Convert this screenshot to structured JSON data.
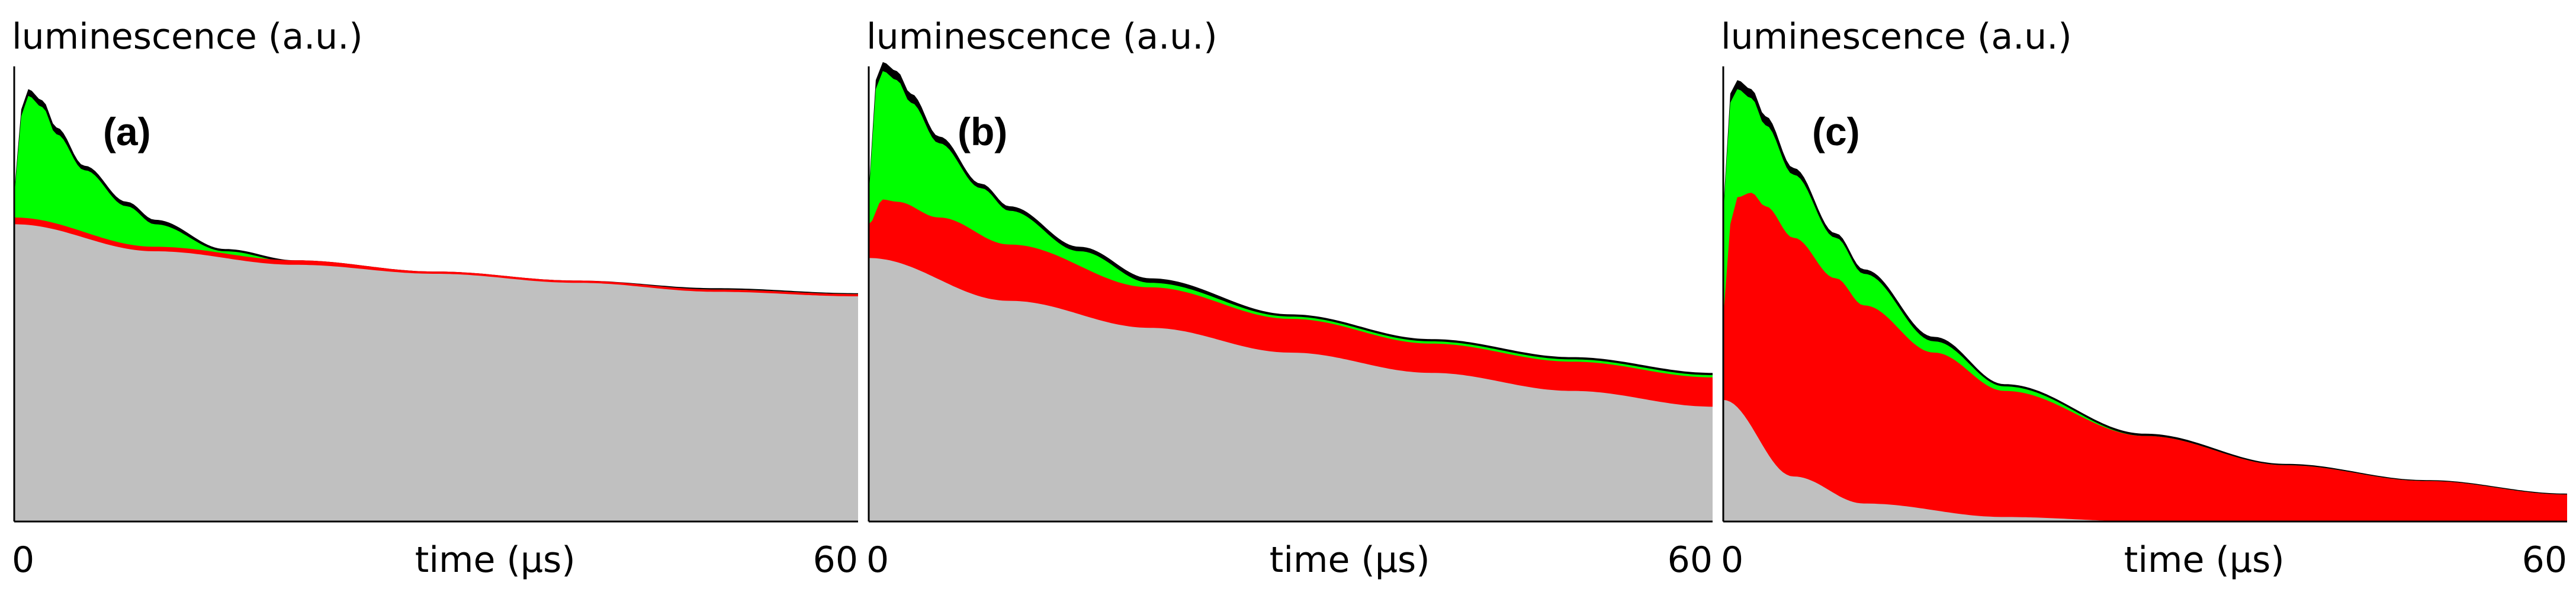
{
  "chart_data": [
    {
      "type": "area",
      "panel_label": "(a)",
      "ylabel": "luminescence (a.u.)",
      "xlabel": "time (µs)",
      "x_ticks": [
        "0",
        "60"
      ],
      "xlim": [
        0,
        60
      ],
      "ylim": [
        0,
        1
      ],
      "colors": {
        "gray": "#c0c0c0",
        "red": "#ff0000",
        "green": "#00ff00",
        "black": "#000000"
      },
      "layers": [
        {
          "color": "gray",
          "x": [
            0,
            10,
            20,
            30,
            40,
            50,
            60
          ],
          "y": [
            0.66,
            0.6,
            0.57,
            0.55,
            0.53,
            0.51,
            0.5
          ]
        },
        {
          "color": "red",
          "x": [
            0,
            10,
            20,
            30,
            40,
            50,
            60
          ],
          "y": [
            0.675,
            0.61,
            0.58,
            0.555,
            0.535,
            0.515,
            0.505
          ]
        },
        {
          "color": "green",
          "x": [
            0,
            0.5,
            1,
            2,
            3,
            5,
            8,
            10,
            15,
            20,
            30,
            40,
            50,
            60
          ],
          "y": [
            0.72,
            0.9,
            0.945,
            0.92,
            0.86,
            0.78,
            0.7,
            0.66,
            0.6,
            0.575,
            0.55,
            0.53,
            0.515,
            0.505
          ]
        },
        {
          "color": "black",
          "x": [
            0,
            0.5,
            1,
            2,
            3,
            5,
            8,
            10,
            15,
            20,
            30,
            40,
            50,
            60
          ],
          "y": [
            0.73,
            0.915,
            0.96,
            0.935,
            0.875,
            0.79,
            0.71,
            0.67,
            0.605,
            0.58,
            0.555,
            0.535,
            0.518,
            0.507
          ]
        }
      ]
    },
    {
      "type": "area",
      "panel_label": "(b)",
      "ylabel": "luminescence (a.u.)",
      "xlabel": "time (µs)",
      "x_ticks": [
        "0",
        "60"
      ],
      "xlim": [
        0,
        60
      ],
      "ylim": [
        0,
        1
      ],
      "colors": {
        "gray": "#c0c0c0",
        "red": "#ff0000",
        "green": "#00ff00",
        "black": "#000000"
      },
      "layers": [
        {
          "color": "gray",
          "x": [
            0,
            10,
            20,
            30,
            40,
            50,
            60
          ],
          "y": [
            0.585,
            0.49,
            0.43,
            0.375,
            0.33,
            0.29,
            0.255
          ]
        },
        {
          "color": "red",
          "x": [
            0,
            1,
            2,
            5,
            10,
            20,
            30,
            40,
            50,
            60
          ],
          "y": [
            0.66,
            0.715,
            0.71,
            0.675,
            0.615,
            0.52,
            0.45,
            0.395,
            0.355,
            0.32
          ]
        },
        {
          "color": "green",
          "x": [
            0,
            0.5,
            1,
            2,
            3,
            5,
            8,
            10,
            15,
            20,
            30,
            40,
            50,
            60
          ],
          "y": [
            0.72,
            0.96,
            1.0,
            0.98,
            0.93,
            0.84,
            0.74,
            0.69,
            0.6,
            0.53,
            0.455,
            0.4,
            0.36,
            0.325
          ]
        },
        {
          "color": "black",
          "x": [
            0,
            0.5,
            1,
            2,
            3,
            5,
            8,
            10,
            15,
            20,
            30,
            40,
            50,
            60
          ],
          "y": [
            0.73,
            0.98,
            1.02,
            1.0,
            0.95,
            0.855,
            0.75,
            0.7,
            0.61,
            0.54,
            0.46,
            0.405,
            0.365,
            0.33
          ]
        }
      ]
    },
    {
      "type": "area",
      "panel_label": "(c)",
      "ylabel": "luminescence (a.u.)",
      "xlabel": "time (µs)",
      "x_ticks": [
        "0",
        "60"
      ],
      "xlim": [
        0,
        60
      ],
      "ylim": [
        0,
        1
      ],
      "colors": {
        "gray": "#c0c0c0",
        "red": "#ff0000",
        "green": "#00ff00",
        "black": "#000000"
      },
      "layers": [
        {
          "color": "gray",
          "x": [
            0,
            5,
            10,
            20,
            30,
            40,
            50,
            60
          ],
          "y": [
            0.27,
            0.1,
            0.04,
            0.01,
            0.0,
            0.0,
            0.0,
            0.0
          ]
        },
        {
          "color": "red",
          "x": [
            0,
            0.5,
            1,
            2,
            3,
            5,
            8,
            10,
            15,
            20,
            30,
            40,
            50,
            60
          ],
          "y": [
            0.45,
            0.66,
            0.72,
            0.73,
            0.7,
            0.63,
            0.54,
            0.48,
            0.375,
            0.29,
            0.19,
            0.125,
            0.09,
            0.06
          ]
        },
        {
          "color": "green",
          "x": [
            0,
            0.5,
            1,
            2,
            3,
            5,
            8,
            10,
            15,
            20,
            30,
            40,
            50,
            60
          ],
          "y": [
            0.68,
            0.93,
            0.96,
            0.94,
            0.88,
            0.77,
            0.63,
            0.55,
            0.4,
            0.3,
            0.19,
            0.125,
            0.09,
            0.06
          ]
        },
        {
          "color": "black",
          "x": [
            0,
            0.5,
            1,
            2,
            3,
            5,
            8,
            10,
            15,
            20,
            30,
            40,
            50,
            60
          ],
          "y": [
            0.69,
            0.95,
            0.98,
            0.96,
            0.9,
            0.785,
            0.64,
            0.56,
            0.41,
            0.305,
            0.195,
            0.128,
            0.092,
            0.062
          ]
        }
      ]
    }
  ]
}
